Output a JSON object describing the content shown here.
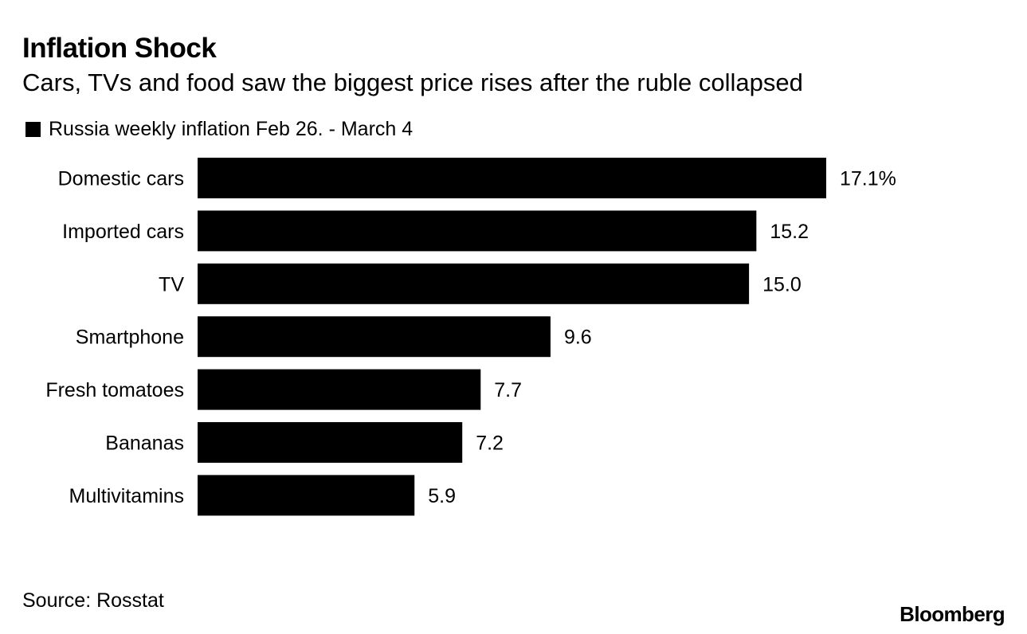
{
  "header": {
    "title": "Inflation Shock",
    "subtitle": "Cars, TVs and food saw the biggest price rises after the ruble collapsed"
  },
  "legend": {
    "label": "Russia weekly inflation Feb 26. - March 4",
    "color": "#000000"
  },
  "footer": {
    "source": "Source: Rosstat",
    "brand": "Bloomberg"
  },
  "chart_data": {
    "type": "bar",
    "orientation": "horizontal",
    "title": "Inflation Shock",
    "subtitle": "Cars, TVs and food saw the biggest price rises after the ruble collapsed",
    "categories": [
      "Domestic cars",
      "Imported cars",
      "TV",
      "Smartphone",
      "Fresh tomatoes",
      "Bananas",
      "Multivitamins"
    ],
    "series": [
      {
        "name": "Russia weekly inflation Feb 26. - March 4",
        "values": [
          17.1,
          15.2,
          15.0,
          9.6,
          7.7,
          7.2,
          5.9
        ],
        "color": "#000000"
      }
    ],
    "value_labels": [
      "17.1%",
      "15.2",
      "15.0",
      "9.6",
      "7.7",
      "7.2",
      "5.9"
    ],
    "xlim": [
      0,
      17.1
    ],
    "xlabel": "",
    "ylabel": "",
    "grid": false,
    "legend_position": "top-left"
  }
}
